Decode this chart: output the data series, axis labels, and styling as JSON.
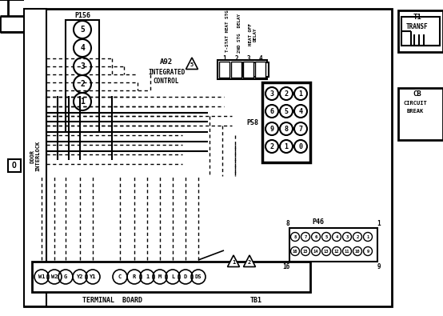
{
  "bg_color": "#ffffff",
  "line_color": "#000000",
  "terminal_board_labels": [
    "W1",
    "W2",
    "G",
    "Y2",
    "Y1",
    "C",
    "R",
    "1",
    "M",
    "L",
    "D",
    "DS"
  ],
  "p156_labels": [
    "5",
    "4",
    "3",
    "2",
    "1"
  ],
  "p58_rows": [
    [
      "3",
      "2",
      "1"
    ],
    [
      "6",
      "5",
      "4"
    ],
    [
      "9",
      "8",
      "7"
    ],
    [
      "2",
      "1",
      "0"
    ]
  ],
  "p46_top": [
    "8",
    "7",
    "6",
    "5",
    "4",
    "3",
    "2",
    "1"
  ],
  "p46_bot": [
    "16",
    "15",
    "14",
    "13",
    "12",
    "11",
    "10",
    "9"
  ],
  "relay_labels": [
    "1",
    "2",
    "3",
    "4"
  ],
  "figsize": [
    5.54,
    3.95
  ],
  "dpi": 100
}
